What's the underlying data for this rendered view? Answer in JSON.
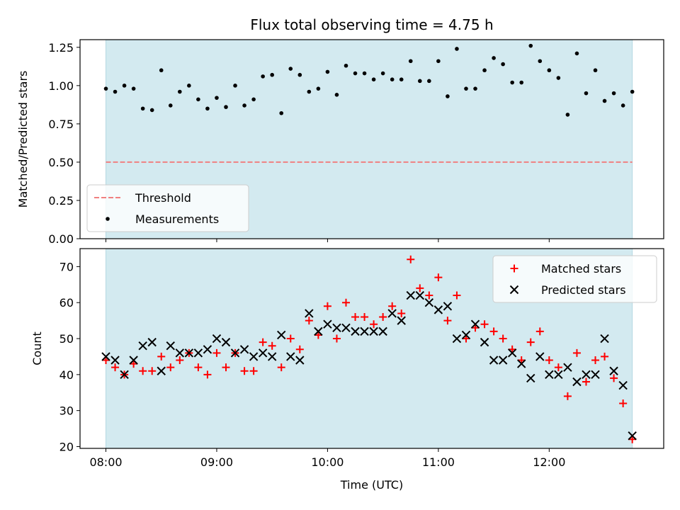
{
  "chart_data": [
    {
      "type": "scatter",
      "title": "Flux total observing time = 4.75 h",
      "ylabel": "Matched/Predicted stars",
      "xlabel": "",
      "xlim": [
        "07:46",
        "13:02"
      ],
      "ylim": [
        0,
        1.3
      ],
      "yticks": [
        "0.00",
        "0.25",
        "0.50",
        "0.75",
        "1.00",
        "1.25"
      ],
      "grid": false,
      "legend_position": "lower-left",
      "shaded_span": {
        "start": "08:00",
        "end": "12:45",
        "color": "#d3eaf0"
      },
      "series": [
        {
          "name": "Threshold",
          "kind": "hline",
          "value": 0.5,
          "color": "#f08080",
          "style": "dashed"
        },
        {
          "name": "Measurements",
          "kind": "points",
          "color": "#000000",
          "x": [
            "08:00",
            "08:05",
            "08:10",
            "08:15",
            "08:20",
            "08:25",
            "08:30",
            "08:35",
            "08:40",
            "08:45",
            "08:50",
            "08:55",
            "09:00",
            "09:05",
            "09:10",
            "09:15",
            "09:20",
            "09:25",
            "09:30",
            "09:35",
            "09:40",
            "09:45",
            "09:50",
            "09:55",
            "10:00",
            "10:05",
            "10:10",
            "10:15",
            "10:20",
            "10:25",
            "10:30",
            "10:35",
            "10:40",
            "10:45",
            "10:50",
            "10:55",
            "11:00",
            "11:05",
            "11:10",
            "11:15",
            "11:20",
            "11:25",
            "11:30",
            "11:35",
            "11:40",
            "11:45",
            "11:50",
            "11:55",
            "12:00",
            "12:05",
            "12:10",
            "12:15",
            "12:20",
            "12:25",
            "12:30",
            "12:35",
            "12:40",
            "12:45"
          ],
          "y": [
            0.98,
            0.96,
            1.0,
            0.98,
            0.85,
            0.84,
            1.1,
            0.87,
            0.96,
            1.0,
            0.91,
            0.85,
            0.92,
            0.86,
            1.0,
            0.87,
            0.91,
            1.06,
            1.07,
            0.82,
            1.11,
            1.07,
            0.96,
            0.98,
            1.09,
            0.94,
            1.13,
            1.08,
            1.08,
            1.04,
            1.08,
            1.04,
            1.04,
            1.16,
            1.03,
            1.03,
            1.16,
            0.93,
            1.24,
            0.98,
            0.98,
            1.1,
            1.18,
            1.14,
            1.02,
            1.02,
            1.26,
            1.16,
            1.1,
            1.05,
            0.81,
            1.21,
            0.95,
            1.1,
            0.9,
            0.95,
            0.87,
            0.96
          ]
        }
      ]
    },
    {
      "type": "scatter",
      "title": "",
      "ylabel": "Count",
      "xlabel": "Time (UTC)",
      "xlim": [
        "07:46",
        "13:02"
      ],
      "xticks": [
        "08:00",
        "09:00",
        "10:00",
        "11:00",
        "12:00"
      ],
      "ylim": [
        19.5,
        75
      ],
      "yticks": [
        "20",
        "30",
        "40",
        "50",
        "60",
        "70"
      ],
      "grid": false,
      "legend_position": "upper-right",
      "shaded_span": {
        "start": "08:00",
        "end": "12:45",
        "color": "#d3eaf0"
      },
      "series": [
        {
          "name": "Matched stars",
          "kind": "plus",
          "color": "#ff0000",
          "x": [
            "08:00",
            "08:05",
            "08:10",
            "08:15",
            "08:20",
            "08:25",
            "08:30",
            "08:35",
            "08:40",
            "08:45",
            "08:50",
            "08:55",
            "09:00",
            "09:05",
            "09:10",
            "09:15",
            "09:20",
            "09:25",
            "09:30",
            "09:35",
            "09:40",
            "09:45",
            "09:50",
            "09:55",
            "10:00",
            "10:05",
            "10:10",
            "10:15",
            "10:20",
            "10:25",
            "10:30",
            "10:35",
            "10:40",
            "10:45",
            "10:50",
            "10:55",
            "11:00",
            "11:05",
            "11:10",
            "11:15",
            "11:20",
            "11:25",
            "11:30",
            "11:35",
            "11:40",
            "11:45",
            "11:50",
            "11:55",
            "12:00",
            "12:05",
            "12:10",
            "12:15",
            "12:20",
            "12:25",
            "12:30",
            "12:35",
            "12:40",
            "12:45"
          ],
          "y": [
            44,
            42,
            40,
            43,
            41,
            41,
            45,
            42,
            44,
            46,
            42,
            40,
            46,
            42,
            46,
            41,
            41,
            49,
            48,
            42,
            50,
            47,
            55,
            51,
            59,
            50,
            60,
            56,
            56,
            54,
            56,
            59,
            57,
            72,
            64,
            62,
            67,
            55,
            62,
            50,
            53,
            54,
            52,
            50,
            47,
            44,
            49,
            52,
            44,
            42,
            34,
            46,
            38,
            44,
            45,
            39,
            32,
            22
          ]
        },
        {
          "name": "Predicted stars",
          "kind": "cross",
          "color": "#000000",
          "x": [
            "08:00",
            "08:05",
            "08:10",
            "08:15",
            "08:20",
            "08:25",
            "08:30",
            "08:35",
            "08:40",
            "08:45",
            "08:50",
            "08:55",
            "09:00",
            "09:05",
            "09:10",
            "09:15",
            "09:20",
            "09:25",
            "09:30",
            "09:35",
            "09:40",
            "09:45",
            "09:50",
            "09:55",
            "10:00",
            "10:05",
            "10:10",
            "10:15",
            "10:20",
            "10:25",
            "10:30",
            "10:35",
            "10:40",
            "10:45",
            "10:50",
            "10:55",
            "11:00",
            "11:05",
            "11:10",
            "11:15",
            "11:20",
            "11:25",
            "11:30",
            "11:35",
            "11:40",
            "11:45",
            "11:50",
            "11:55",
            "12:00",
            "12:05",
            "12:10",
            "12:15",
            "12:20",
            "12:25",
            "12:30",
            "12:35",
            "12:40",
            "12:45"
          ],
          "y": [
            45,
            44,
            40,
            44,
            48,
            49,
            41,
            48,
            46,
            46,
            46,
            47,
            50,
            49,
            46,
            47,
            45,
            46,
            45,
            51,
            45,
            44,
            57,
            52,
            54,
            53,
            53,
            52,
            52,
            52,
            52,
            57,
            55,
            62,
            62,
            60,
            58,
            59,
            50,
            51,
            54,
            49,
            44,
            44,
            46,
            43,
            39,
            45,
            40,
            40,
            42,
            38,
            40,
            40,
            50,
            41,
            37,
            23
          ]
        }
      ]
    }
  ]
}
